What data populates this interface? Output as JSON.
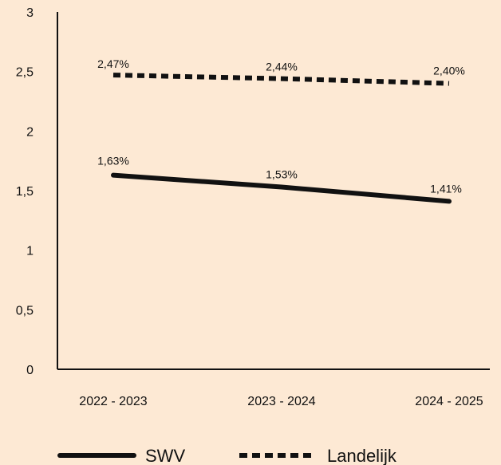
{
  "chart_data": {
    "type": "line",
    "categories": [
      "2022 - 2023",
      "2023 - 2024",
      "2024 - 2025"
    ],
    "ylim": [
      0,
      3
    ],
    "yticks": [
      "0",
      "0,5",
      "1",
      "1,5",
      "2",
      "2,5",
      "3"
    ],
    "ytick_values": [
      0,
      0.5,
      1,
      1.5,
      2,
      2.5,
      3
    ],
    "grid": false,
    "legend_position": "bottom",
    "series": [
      {
        "name": "SWV",
        "values": [
          1.63,
          1.53,
          1.41
        ],
        "labels": [
          "1,63%",
          "1,53%",
          "1,41%"
        ],
        "style": "solid",
        "color": "#111111"
      },
      {
        "name": "Landelijk",
        "values": [
          2.47,
          2.44,
          2.4
        ],
        "labels": [
          "2,47%",
          "2,44%",
          "2,40%"
        ],
        "style": "dashed",
        "color": "#111111"
      }
    ]
  },
  "colors": {
    "background": "#fde9d4",
    "ink": "#111111"
  }
}
